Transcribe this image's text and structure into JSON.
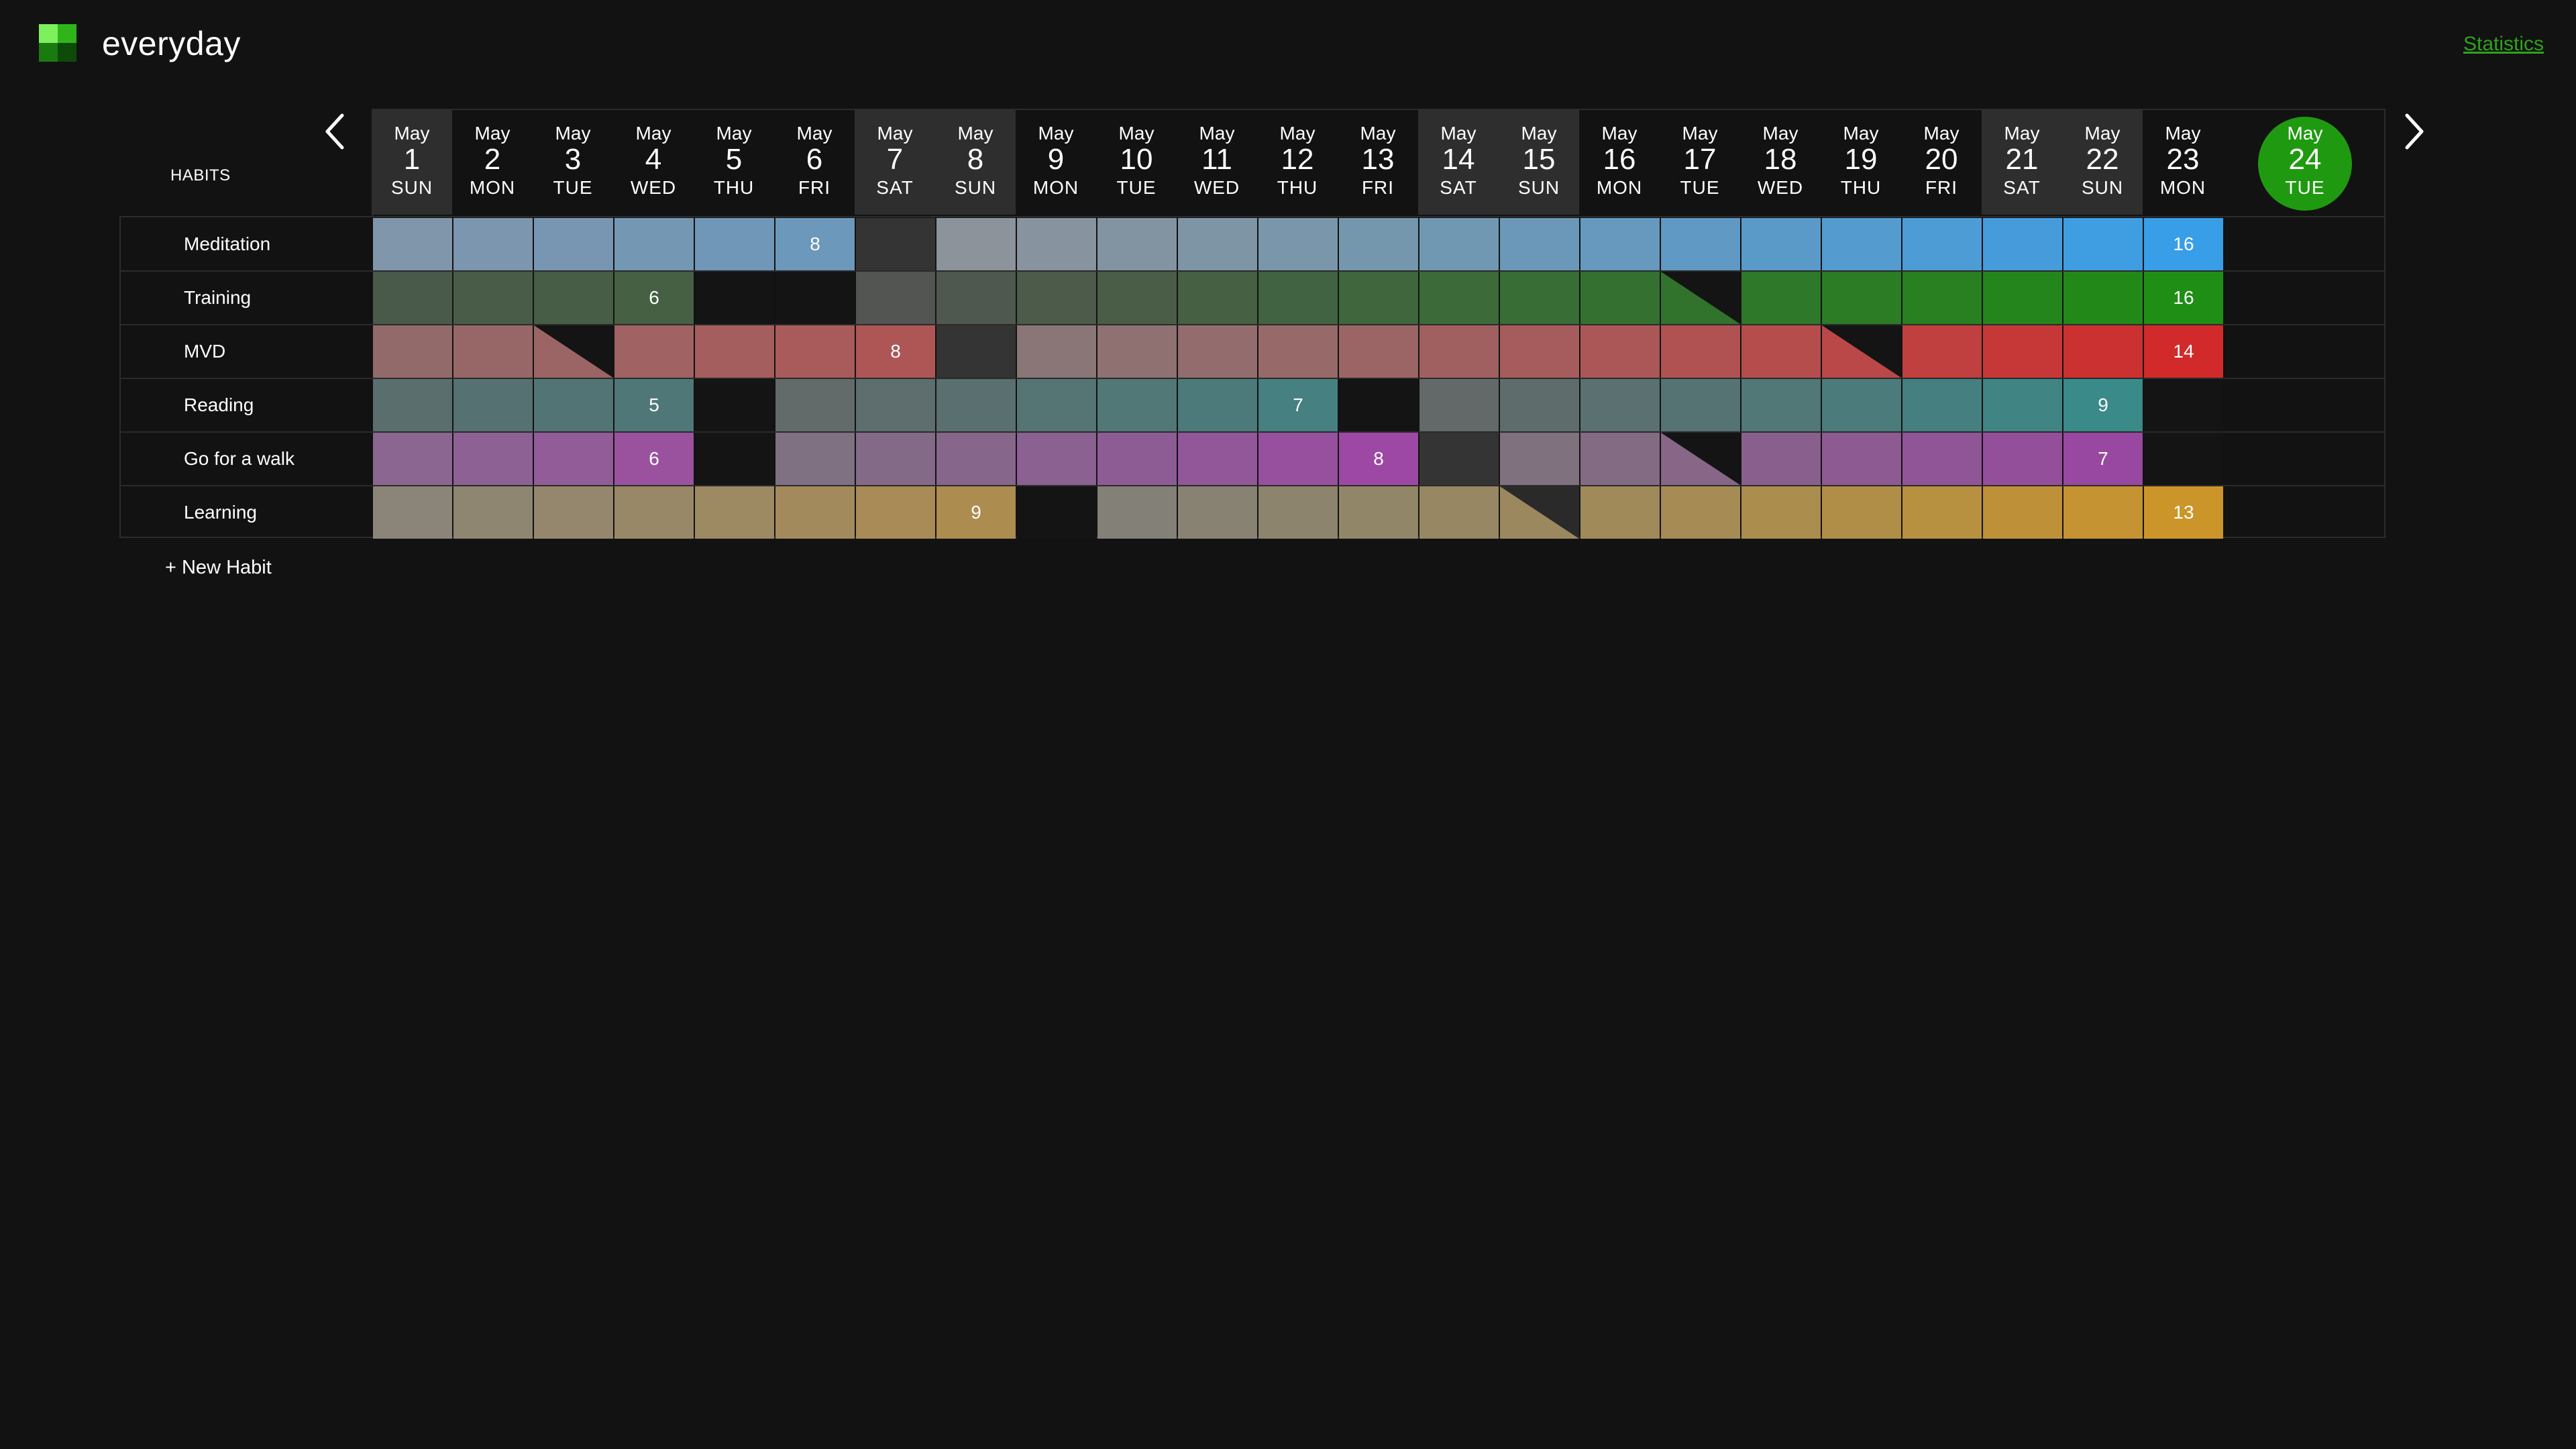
{
  "app": {
    "title": "everyday",
    "statistics_link": "Statistics",
    "logo_colors": [
      "#7ef05e",
      "#2fb51a",
      "#1a7a10",
      "#0e4a08"
    ]
  },
  "table": {
    "habits_header": "HABITS",
    "prev_icon": "chevron-left-icon",
    "next_icon": "chevron-right-icon",
    "new_habit_label": "+ New Habit"
  },
  "days": [
    {
      "month": "May",
      "day": "1",
      "weekday": "SUN",
      "weekend": true
    },
    {
      "month": "May",
      "day": "2",
      "weekday": "MON",
      "weekend": false
    },
    {
      "month": "May",
      "day": "3",
      "weekday": "TUE",
      "weekend": false
    },
    {
      "month": "May",
      "day": "4",
      "weekday": "WED",
      "weekend": false
    },
    {
      "month": "May",
      "day": "5",
      "weekday": "THU",
      "weekend": false
    },
    {
      "month": "May",
      "day": "6",
      "weekday": "FRI",
      "weekend": false
    },
    {
      "month": "May",
      "day": "7",
      "weekday": "SAT",
      "weekend": true
    },
    {
      "month": "May",
      "day": "8",
      "weekday": "SUN",
      "weekend": true
    },
    {
      "month": "May",
      "day": "9",
      "weekday": "MON",
      "weekend": false
    },
    {
      "month": "May",
      "day": "10",
      "weekday": "TUE",
      "weekend": false
    },
    {
      "month": "May",
      "day": "11",
      "weekday": "WED",
      "weekend": false
    },
    {
      "month": "May",
      "day": "12",
      "weekday": "THU",
      "weekend": false
    },
    {
      "month": "May",
      "day": "13",
      "weekday": "FRI",
      "weekend": false
    },
    {
      "month": "May",
      "day": "14",
      "weekday": "SAT",
      "weekend": true
    },
    {
      "month": "May",
      "day": "15",
      "weekday": "SUN",
      "weekend": true
    },
    {
      "month": "May",
      "day": "16",
      "weekday": "MON",
      "weekend": false
    },
    {
      "month": "May",
      "day": "17",
      "weekday": "TUE",
      "weekend": false
    },
    {
      "month": "May",
      "day": "18",
      "weekday": "WED",
      "weekend": false
    },
    {
      "month": "May",
      "day": "19",
      "weekday": "THU",
      "weekend": false
    },
    {
      "month": "May",
      "day": "20",
      "weekday": "FRI",
      "weekend": false
    },
    {
      "month": "May",
      "day": "21",
      "weekday": "SAT",
      "weekend": true
    },
    {
      "month": "May",
      "day": "22",
      "weekday": "SUN",
      "weekend": true
    },
    {
      "month": "May",
      "day": "23",
      "weekday": "MON",
      "weekend": false
    }
  ],
  "today": {
    "month": "May",
    "day": "24",
    "weekday": "TUE",
    "color": "#1f9a10"
  },
  "habits": [
    {
      "name": "Meditation",
      "cells": [
        {
          "state": "done",
          "color": "#7f96ab"
        },
        {
          "state": "done",
          "color": "#7b96ae"
        },
        {
          "state": "done",
          "color": "#7896b1"
        },
        {
          "state": "done",
          "color": "#7497b4"
        },
        {
          "state": "done",
          "color": "#7097b7"
        },
        {
          "state": "done",
          "color": "#6c98bb",
          "label": "8"
        },
        {
          "state": "weekend-empty",
          "color": "#343434"
        },
        {
          "state": "done",
          "color": "#8c939a"
        },
        {
          "state": "done",
          "color": "#87939e"
        },
        {
          "state": "done",
          "color": "#8294a2"
        },
        {
          "state": "done",
          "color": "#7e95a6"
        },
        {
          "state": "done",
          "color": "#7a96aa"
        },
        {
          "state": "done",
          "color": "#7597ae"
        },
        {
          "state": "done",
          "color": "#7098b3"
        },
        {
          "state": "done",
          "color": "#6b98b8"
        },
        {
          "state": "done",
          "color": "#6699bd"
        },
        {
          "state": "done",
          "color": "#6099c3"
        },
        {
          "state": "done",
          "color": "#5a9ac9"
        },
        {
          "state": "done",
          "color": "#549bcf"
        },
        {
          "state": "done",
          "color": "#4d9cd5"
        },
        {
          "state": "done",
          "color": "#469cdb"
        },
        {
          "state": "done",
          "color": "#3f9de2"
        },
        {
          "state": "done",
          "color": "#389ee8",
          "label": "16"
        }
      ]
    },
    {
      "name": "Training",
      "cells": [
        {
          "state": "done",
          "color": "#4a5a4a"
        },
        {
          "state": "done",
          "color": "#495c48"
        },
        {
          "state": "done",
          "color": "#475d45"
        },
        {
          "state": "done",
          "color": "#456043",
          "label": "6"
        },
        {
          "state": "empty",
          "color": "#141414"
        },
        {
          "state": "empty",
          "color": "#141414"
        },
        {
          "state": "done",
          "color": "#525552"
        },
        {
          "state": "done",
          "color": "#4f584e"
        },
        {
          "state": "done",
          "color": "#4c5b4a"
        },
        {
          "state": "done",
          "color": "#495d47"
        },
        {
          "state": "done",
          "color": "#466044"
        },
        {
          "state": "done",
          "color": "#426341"
        },
        {
          "state": "done",
          "color": "#3f663d"
        },
        {
          "state": "done",
          "color": "#3c6a39"
        },
        {
          "state": "done",
          "color": "#386d35"
        },
        {
          "state": "done",
          "color": "#347131"
        },
        {
          "state": "partial",
          "color": "#31732d",
          "corner": "#141414"
        },
        {
          "state": "done",
          "color": "#2e7829"
        },
        {
          "state": "done",
          "color": "#2b7c25"
        },
        {
          "state": "done",
          "color": "#288021"
        },
        {
          "state": "done",
          "color": "#25851d"
        },
        {
          "state": "done",
          "color": "#228919"
        },
        {
          "state": "done",
          "color": "#1f8e15",
          "label": "16"
        }
      ]
    },
    {
      "name": "MVD",
      "cells": [
        {
          "state": "done",
          "color": "#936a6a"
        },
        {
          "state": "done",
          "color": "#976767"
        },
        {
          "state": "partial",
          "color": "#9b6565",
          "corner": "#141414"
        },
        {
          "state": "done",
          "color": "#a06262"
        },
        {
          "state": "done",
          "color": "#a55e5e"
        },
        {
          "state": "done",
          "color": "#a95a5a"
        },
        {
          "state": "done",
          "color": "#ae5656",
          "label": "8"
        },
        {
          "state": "weekend-empty",
          "color": "#343434"
        },
        {
          "state": "done",
          "color": "#8a7676"
        },
        {
          "state": "done",
          "color": "#8f7171"
        },
        {
          "state": "done",
          "color": "#936d6d"
        },
        {
          "state": "done",
          "color": "#986969"
        },
        {
          "state": "done",
          "color": "#9c6565"
        },
        {
          "state": "done",
          "color": "#a16060"
        },
        {
          "state": "done",
          "color": "#a65c5c"
        },
        {
          "state": "done",
          "color": "#ab5757"
        },
        {
          "state": "done",
          "color": "#b05252"
        },
        {
          "state": "done",
          "color": "#b54d4d"
        },
        {
          "state": "partial",
          "color": "#ba4848",
          "corner": "#141414"
        },
        {
          "state": "done",
          "color": "#c03f3f"
        },
        {
          "state": "done",
          "color": "#c63838"
        },
        {
          "state": "done",
          "color": "#cc3131"
        },
        {
          "state": "done",
          "color": "#d22a2a",
          "label": "14"
        }
      ]
    },
    {
      "name": "Reading",
      "cells": [
        {
          "state": "done",
          "color": "#5a6e6e"
        },
        {
          "state": "done",
          "color": "#567171"
        },
        {
          "state": "done",
          "color": "#537474"
        },
        {
          "state": "done",
          "color": "#4f7777",
          "label": "5"
        },
        {
          "state": "empty",
          "color": "#141414"
        },
        {
          "state": "done",
          "color": "#626a6a"
        },
        {
          "state": "done",
          "color": "#5e6d6d"
        },
        {
          "state": "done",
          "color": "#5a7070"
        },
        {
          "state": "done",
          "color": "#557474"
        },
        {
          "state": "done",
          "color": "#517777"
        },
        {
          "state": "done",
          "color": "#4c7a7a"
        },
        {
          "state": "done",
          "color": "#478080",
          "label": "7"
        },
        {
          "state": "empty",
          "color": "#141414"
        },
        {
          "state": "done",
          "color": "#636969"
        },
        {
          "state": "done",
          "color": "#5f6c6c"
        },
        {
          "state": "done",
          "color": "#5b7070"
        },
        {
          "state": "done",
          "color": "#567373"
        },
        {
          "state": "done",
          "color": "#517777"
        },
        {
          "state": "done",
          "color": "#4c7b7b"
        },
        {
          "state": "done",
          "color": "#467f7f"
        },
        {
          "state": "done",
          "color": "#408484"
        },
        {
          "state": "done",
          "color": "#3a8a8a",
          "label": "9"
        },
        {
          "state": "empty",
          "color": "#141414"
        }
      ]
    },
    {
      "name": "Go for a walk",
      "cells": [
        {
          "state": "done",
          "color": "#8a6690"
        },
        {
          "state": "done",
          "color": "#8e6194"
        },
        {
          "state": "done",
          "color": "#925c98"
        },
        {
          "state": "done",
          "color": "#9a529f",
          "label": "6"
        },
        {
          "state": "empty",
          "color": "#141414"
        },
        {
          "state": "done",
          "color": "#7f7082"
        },
        {
          "state": "done",
          "color": "#836b87"
        },
        {
          "state": "done",
          "color": "#87668b"
        },
        {
          "state": "done",
          "color": "#8a6190"
        },
        {
          "state": "done",
          "color": "#8e5c94"
        },
        {
          "state": "done",
          "color": "#925799"
        },
        {
          "state": "done",
          "color": "#97509e"
        },
        {
          "state": "done",
          "color": "#9d48a4",
          "label": "8"
        },
        {
          "state": "weekend-empty",
          "color": "#343434"
        },
        {
          "state": "done",
          "color": "#80717f"
        },
        {
          "state": "done",
          "color": "#846b84"
        },
        {
          "state": "partial",
          "color": "#876688",
          "corner": "#141414"
        },
        {
          "state": "done",
          "color": "#89608d"
        },
        {
          "state": "done",
          "color": "#8d5b91"
        },
        {
          "state": "done",
          "color": "#905596"
        },
        {
          "state": "done",
          "color": "#944f9b"
        },
        {
          "state": "done",
          "color": "#9848a0",
          "label": "7"
        },
        {
          "state": "empty",
          "color": "#141414"
        }
      ]
    },
    {
      "name": "Learning",
      "cells": [
        {
          "state": "done",
          "color": "#8a8578"
        },
        {
          "state": "done",
          "color": "#8f8672"
        },
        {
          "state": "done",
          "color": "#94876d"
        },
        {
          "state": "done",
          "color": "#988867"
        },
        {
          "state": "done",
          "color": "#9d8962"
        },
        {
          "state": "done",
          "color": "#a28a5c"
        },
        {
          "state": "done",
          "color": "#a88b56"
        },
        {
          "state": "done",
          "color": "#ad8c4f",
          "label": "9"
        },
        {
          "state": "empty",
          "color": "#141414"
        },
        {
          "state": "done",
          "color": "#838077"
        },
        {
          "state": "done",
          "color": "#888273"
        },
        {
          "state": "done",
          "color": "#8d846e"
        },
        {
          "state": "done",
          "color": "#928669"
        },
        {
          "state": "done",
          "color": "#978763"
        },
        {
          "state": "partial",
          "color": "#9b885e",
          "corner": "#2a2a2a"
        },
        {
          "state": "done",
          "color": "#a08a5a"
        },
        {
          "state": "done",
          "color": "#a68c54"
        },
        {
          "state": "done",
          "color": "#ab8d4e"
        },
        {
          "state": "done",
          "color": "#b18e47"
        },
        {
          "state": "done",
          "color": "#b79040"
        },
        {
          "state": "done",
          "color": "#be9139"
        },
        {
          "state": "done",
          "color": "#c59332"
        },
        {
          "state": "done",
          "color": "#cc952a",
          "label": "13"
        }
      ]
    }
  ]
}
